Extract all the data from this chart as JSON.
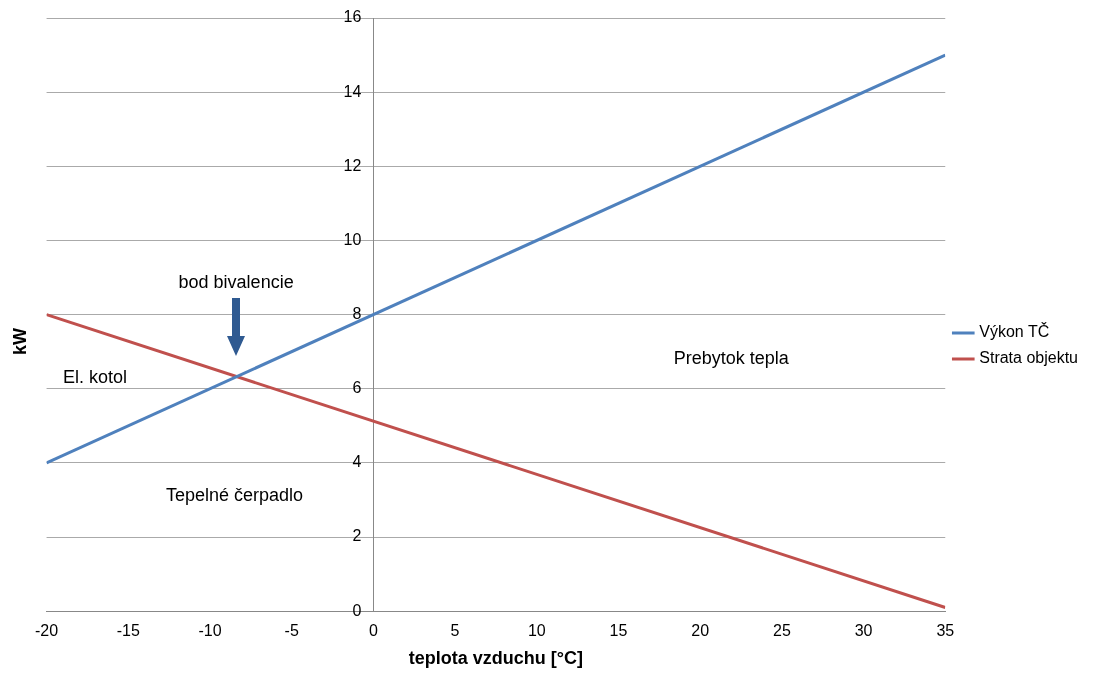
{
  "chart_data": {
    "type": "line",
    "xlabel": "teplota vzduchu [°C]",
    "ylabel": "kW",
    "xlim": [
      -20,
      35
    ],
    "xticks": [
      -20,
      -15,
      -10,
      -5,
      0,
      5,
      10,
      15,
      20,
      25,
      30,
      35
    ],
    "ylim": [
      0,
      16
    ],
    "yticks": [
      0,
      2,
      4,
      6,
      8,
      10,
      12,
      14,
      16
    ],
    "x": [
      -20,
      35
    ],
    "grid": "y",
    "legend": "right",
    "marker": "none",
    "line_style": "solid",
    "series": [
      {
        "name": "Výkon TČ",
        "color": "#4f81bd",
        "values": [
          4,
          15
        ]
      },
      {
        "name": "Strata objektu",
        "color": "#c0504d",
        "values": [
          8,
          0.1
        ]
      }
    ],
    "annotations": [
      "bod bivalencie",
      "El. kotol",
      "Tepelné čerpadlo",
      "Prebytok tepla"
    ]
  }
}
